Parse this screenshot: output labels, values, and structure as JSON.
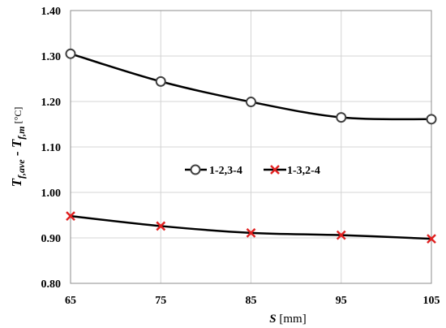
{
  "chart_data": {
    "type": "line",
    "x": [
      65,
      75,
      85,
      95,
      105
    ],
    "xlim": [
      65,
      105
    ],
    "ylim": [
      0.8,
      1.4
    ],
    "xticks": [
      "65",
      "75",
      "85",
      "95",
      "105"
    ],
    "yticks": [
      "0.80",
      "0.90",
      "1.00",
      "1.10",
      "1.20",
      "1.30",
      "1.40"
    ],
    "xlabel": {
      "symbol": "S",
      "unit": " [mm]"
    },
    "ylabel": {
      "t1": "T",
      "s1": "f,ave",
      "mid": " - ",
      "t2": "T",
      "s2": "f,m",
      "unit": "  [°C]"
    },
    "grid": true,
    "legend_position": "center",
    "series": [
      {
        "name": "1-2,3-4",
        "marker": "circle",
        "line_color": "#000000",
        "marker_color": "#404040",
        "values": [
          1.305,
          1.244,
          1.199,
          1.165,
          1.161
        ]
      },
      {
        "name": "1-3,2-4",
        "marker": "x",
        "line_color": "#000000",
        "marker_color": "#e02020",
        "values": [
          0.948,
          0.926,
          0.911,
          0.906,
          0.898
        ]
      }
    ]
  }
}
